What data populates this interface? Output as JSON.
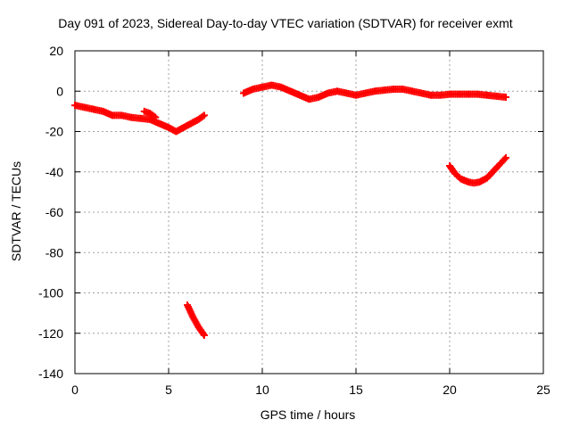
{
  "chart_data": {
    "type": "scatter",
    "title": "Day 091 of 2023, Sidereal Day-to-day VTEC variation (SDTVAR) for receiver exmt",
    "xlabel": "GPS time / hours",
    "ylabel": "SDTVAR / TECUs",
    "xlim": [
      0,
      25
    ],
    "ylim": [
      -140,
      20
    ],
    "xticks": [
      0,
      5,
      10,
      15,
      20,
      25
    ],
    "yticks": [
      20,
      0,
      -20,
      -40,
      -60,
      -80,
      -100,
      -120,
      -140
    ],
    "grid": true,
    "marker": "plus",
    "color": "#ff0000",
    "series": [
      {
        "name": "segment-1",
        "x": [
          0.0,
          0.5,
          1.0,
          1.5,
          2.0,
          2.5,
          3.0,
          3.5,
          4.0,
          4.5,
          5.0,
          5.4,
          5.8,
          6.2,
          6.6,
          6.9
        ],
        "y": [
          -7,
          -8,
          -9,
          -10,
          -12,
          -12,
          -13,
          -13.5,
          -14,
          -16,
          -18,
          -20,
          -18,
          -16,
          -14,
          -12
        ]
      },
      {
        "name": "segment-1b",
        "x": [
          3.7,
          4.0,
          4.3
        ],
        "y": [
          -10,
          -11,
          -13
        ]
      },
      {
        "name": "segment-2",
        "x": [
          6.0,
          6.3,
          6.6,
          6.9
        ],
        "y": [
          -106,
          -112,
          -117,
          -121
        ]
      },
      {
        "name": "segment-3",
        "x": [
          9.0,
          9.5,
          10.0,
          10.5,
          11.0,
          11.5,
          12.0,
          12.5,
          13.0,
          13.5,
          14.0,
          14.5,
          15.0,
          15.5,
          16.0,
          16.5,
          17.0,
          17.5,
          18.0,
          18.5,
          19.0,
          19.5,
          20.0,
          20.5,
          21.0,
          21.5,
          22.0,
          22.5,
          23.0
        ],
        "y": [
          -1,
          1,
          2,
          3,
          2,
          0,
          -2,
          -4,
          -3,
          -1,
          0,
          -1,
          -2,
          -1,
          0,
          0.5,
          1,
          1,
          0,
          -1,
          -2,
          -2,
          -1.5,
          -1.5,
          -1.5,
          -1.5,
          -2,
          -2.5,
          -3
        ]
      },
      {
        "name": "segment-4",
        "x": [
          20.0,
          20.3,
          20.6,
          21.0,
          21.3,
          21.6,
          22.0,
          22.3,
          22.6,
          23.0
        ],
        "y": [
          -37,
          -41,
          -43.5,
          -45,
          -45.5,
          -45,
          -43,
          -40,
          -37,
          -33
        ]
      }
    ]
  }
}
